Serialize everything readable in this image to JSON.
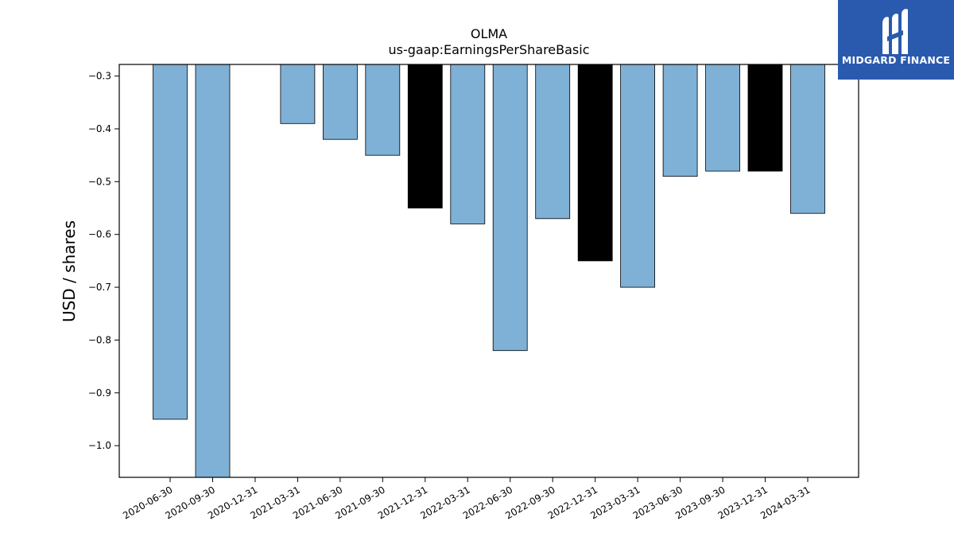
{
  "brand": {
    "name": "MIDGARD FINANCE",
    "bg_color": "#2a5aae"
  },
  "chart_data": {
    "type": "bar",
    "title": "OLMA",
    "subtitle": "us-gaap:EarningsPerShareBasic",
    "xlabel": "",
    "ylabel": "USD / shares",
    "ylim": [
      -1.06,
      -0.278
    ],
    "yticks": [
      -0.3,
      -0.4,
      -0.5,
      -0.6,
      -0.7,
      -0.8,
      -0.9,
      -1.0
    ],
    "grid": false,
    "categories": [
      "2020-06-30",
      "2020-09-30",
      "2020-12-31",
      "2021-03-31",
      "2021-06-30",
      "2021-09-30",
      "2021-12-31",
      "2022-03-31",
      "2022-06-30",
      "2022-09-30",
      "2022-12-31",
      "2023-03-31",
      "2023-06-30",
      "2023-09-30",
      "2023-12-31",
      "2024-03-31"
    ],
    "values": [
      -0.95,
      -1.06,
      null,
      -0.39,
      -0.42,
      -0.45,
      -0.55,
      -0.58,
      -0.82,
      -0.57,
      -0.65,
      -0.7,
      -0.49,
      -0.48,
      -0.48,
      -0.56
    ],
    "bar_colors": [
      "#7fb0d5",
      "#7fb0d5",
      null,
      "#7fb0d5",
      "#7fb0d5",
      "#7fb0d5",
      "#000000",
      "#7fb0d5",
      "#7fb0d5",
      "#7fb0d5",
      "#000000",
      "#7fb0d5",
      "#7fb0d5",
      "#7fb0d5",
      "#000000",
      "#7fb0d5"
    ]
  }
}
